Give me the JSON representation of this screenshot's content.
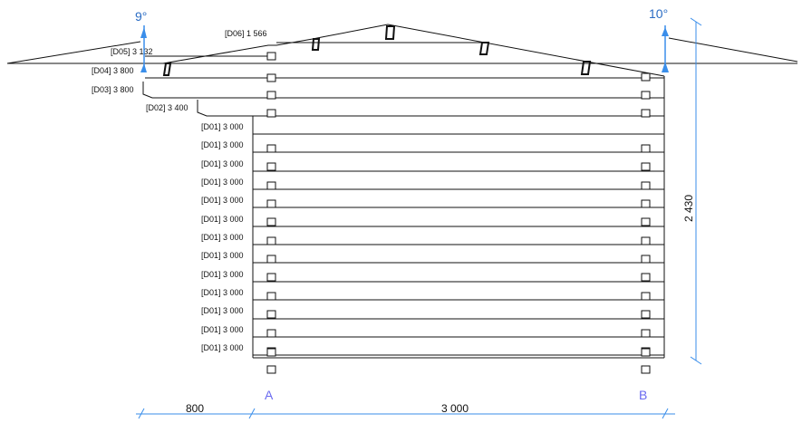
{
  "angles": {
    "left": "9°",
    "right": "10°"
  },
  "angle_color": "#3a8eea",
  "dim_color": "#3a8eea",
  "axis_color": "#6a6af0",
  "line_color": "#111111",
  "beam_labels": [
    "[D06] 1 566",
    "[D05] 3 132",
    "[D04] 3 800",
    "[D03] 3 800",
    "[D02] 3 400",
    "[D01] 3 000",
    "[D01] 3 000",
    "[D01] 3 000",
    "[D01] 3 000",
    "[D01] 3 000",
    "[D01] 3 000",
    "[D01] 3 000",
    "[D01] 3 000",
    "[D01] 3 000",
    "[D01] 3 000",
    "[D01] 3 000",
    "[D01] 3 000",
    "[D01] 3 000"
  ],
  "axes": {
    "a": "A",
    "b": "B"
  },
  "dimensions": {
    "height": "2 430",
    "overhang": "800",
    "span": "3 000"
  }
}
